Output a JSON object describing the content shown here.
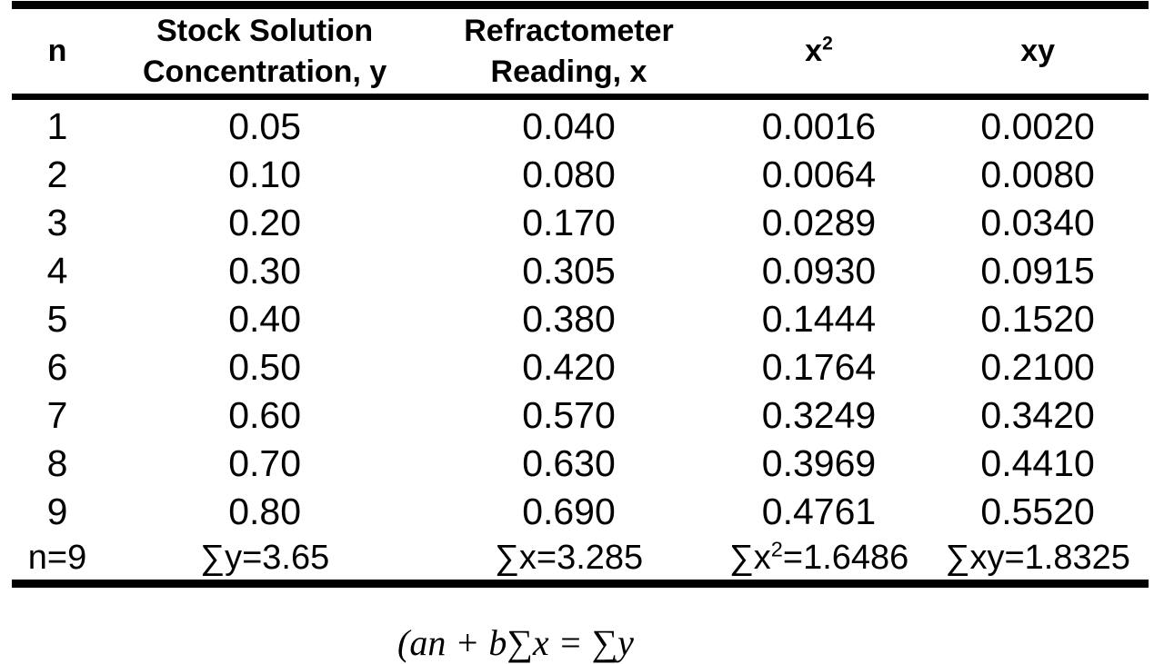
{
  "page": {
    "background": "#ffffff",
    "text_color": "#000000",
    "border_color": "#000000"
  },
  "table": {
    "headers": [
      {
        "line1": "n",
        "sup": "",
        "line2": ""
      },
      {
        "line1": "Stock Solution",
        "sup": "",
        "line2": "Concentration, y"
      },
      {
        "line1": "Refractometer",
        "sup": "",
        "line2": "Reading, x"
      },
      {
        "line1": "x",
        "sup": "2",
        "line2": ""
      },
      {
        "line1": "xy",
        "sup": "",
        "line2": ""
      }
    ],
    "rows": [
      [
        "1",
        "0.05",
        "0.040",
        "0.0016",
        "0.0020"
      ],
      [
        "2",
        "0.10",
        "0.080",
        "0.0064",
        "0.0080"
      ],
      [
        "3",
        "0.20",
        "0.170",
        "0.0289",
        "0.0340"
      ],
      [
        "4",
        "0.30",
        "0.305",
        "0.0930",
        "0.0915"
      ],
      [
        "5",
        "0.40",
        "0.380",
        "0.1444",
        "0.1520"
      ],
      [
        "6",
        "0.50",
        "0.420",
        "0.1764",
        "0.2100"
      ],
      [
        "7",
        "0.60",
        "0.570",
        "0.3249",
        "0.3420"
      ],
      [
        "8",
        "0.70",
        "0.630",
        "0.3969",
        "0.4410"
      ],
      [
        "9",
        "0.80",
        "0.690",
        "0.4761",
        "0.5520"
      ]
    ],
    "summary": [
      {
        "pre": "n=9",
        "sup": "",
        "post": ""
      },
      {
        "pre": "∑y=3.65",
        "sup": "",
        "post": ""
      },
      {
        "pre": "∑x=3.285",
        "sup": "",
        "post": ""
      },
      {
        "pre": "∑x",
        "sup": "2",
        "post": "=1.6486"
      },
      {
        "pre": "∑xy=1.8325",
        "sup": "",
        "post": ""
      }
    ]
  },
  "equation": {
    "text": "(an + b∑x = ∑y"
  }
}
